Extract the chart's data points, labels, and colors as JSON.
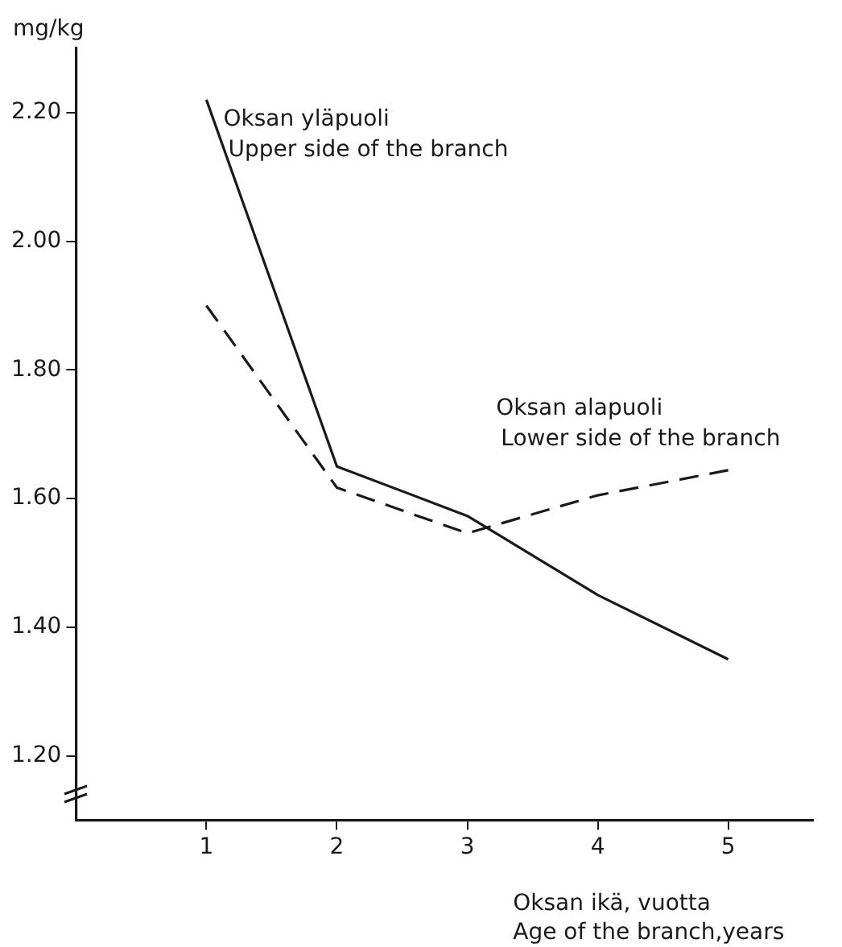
{
  "chart_data": {
    "type": "line",
    "ylabel": "mg/kg",
    "xlabel": "Oksan ikä, vuotta\nAge of the branch,years",
    "x": [
      1,
      2,
      3,
      4,
      5
    ],
    "series": [
      {
        "color": "#1a1a1a",
        "line_style": "solid",
        "values": [
          2.22,
          1.65,
          1.573,
          1.45,
          1.35
        ]
      },
      {
        "color": "#1a1a1a",
        "line_style": "dashed",
        "values": [
          1.9,
          1.617,
          1.546,
          1.605,
          1.644
        ]
      }
    ],
    "annotations": [
      "Oksan yläpuoli\nUpper side of the branch",
      "Oksan alapuoli\nLower side of the branch"
    ],
    "xlim": [
      0,
      5.65
    ],
    "xticks": [
      1,
      2,
      3,
      4,
      5
    ],
    "ylim": [
      1.1,
      2.3
    ],
    "yticks": [
      {
        "value": 1.2,
        "label": "1.20"
      },
      {
        "value": 1.4,
        "label": "1.40"
      },
      {
        "value": 1.6,
        "label": "1.60"
      },
      {
        "value": 1.8,
        "label": "1.80"
      },
      {
        "value": 2.0,
        "label": "2.00"
      },
      {
        "value": 2.2,
        "label": "2.20"
      }
    ],
    "grid": false,
    "legend": false,
    "marker": "none"
  }
}
